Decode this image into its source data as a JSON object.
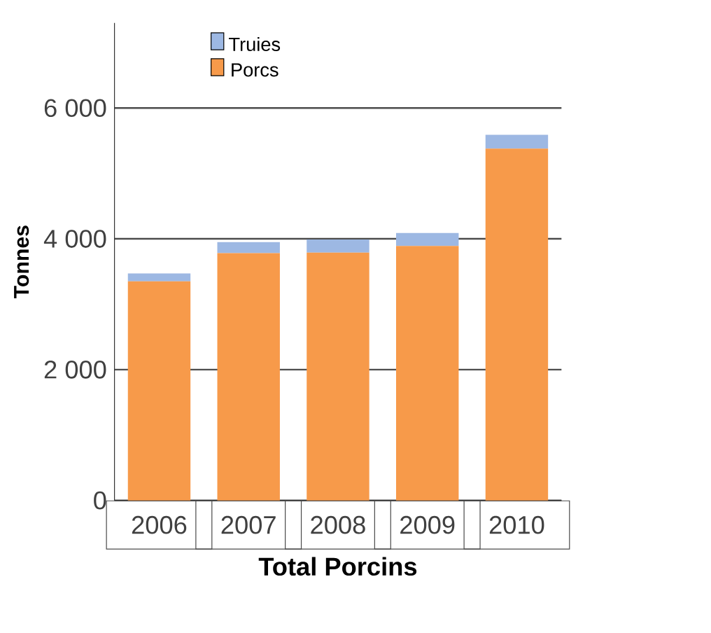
{
  "chart_data": {
    "type": "bar",
    "stacked": true,
    "xlabel": "Total Porcins",
    "ylabel": "Tonnes",
    "categories": [
      "2006",
      "2007",
      "2008",
      "2009",
      "2010"
    ],
    "series": [
      {
        "name": "Porcs",
        "color": "#f79a4a",
        "values": [
          3350,
          3780,
          3790,
          3890,
          5380
        ]
      },
      {
        "name": "Truies",
        "color": "#9db8e3",
        "values": [
          120,
          170,
          200,
          200,
          210
        ]
      }
    ],
    "ylim": [
      0,
      7300
    ],
    "yticks": [
      {
        "value": 0,
        "label": "0"
      },
      {
        "value": 2000,
        "label": "2 000"
      },
      {
        "value": 4000,
        "label": "4 000"
      },
      {
        "value": 6000,
        "label": "6 000"
      }
    ],
    "grid": "y",
    "legend": "top left"
  }
}
